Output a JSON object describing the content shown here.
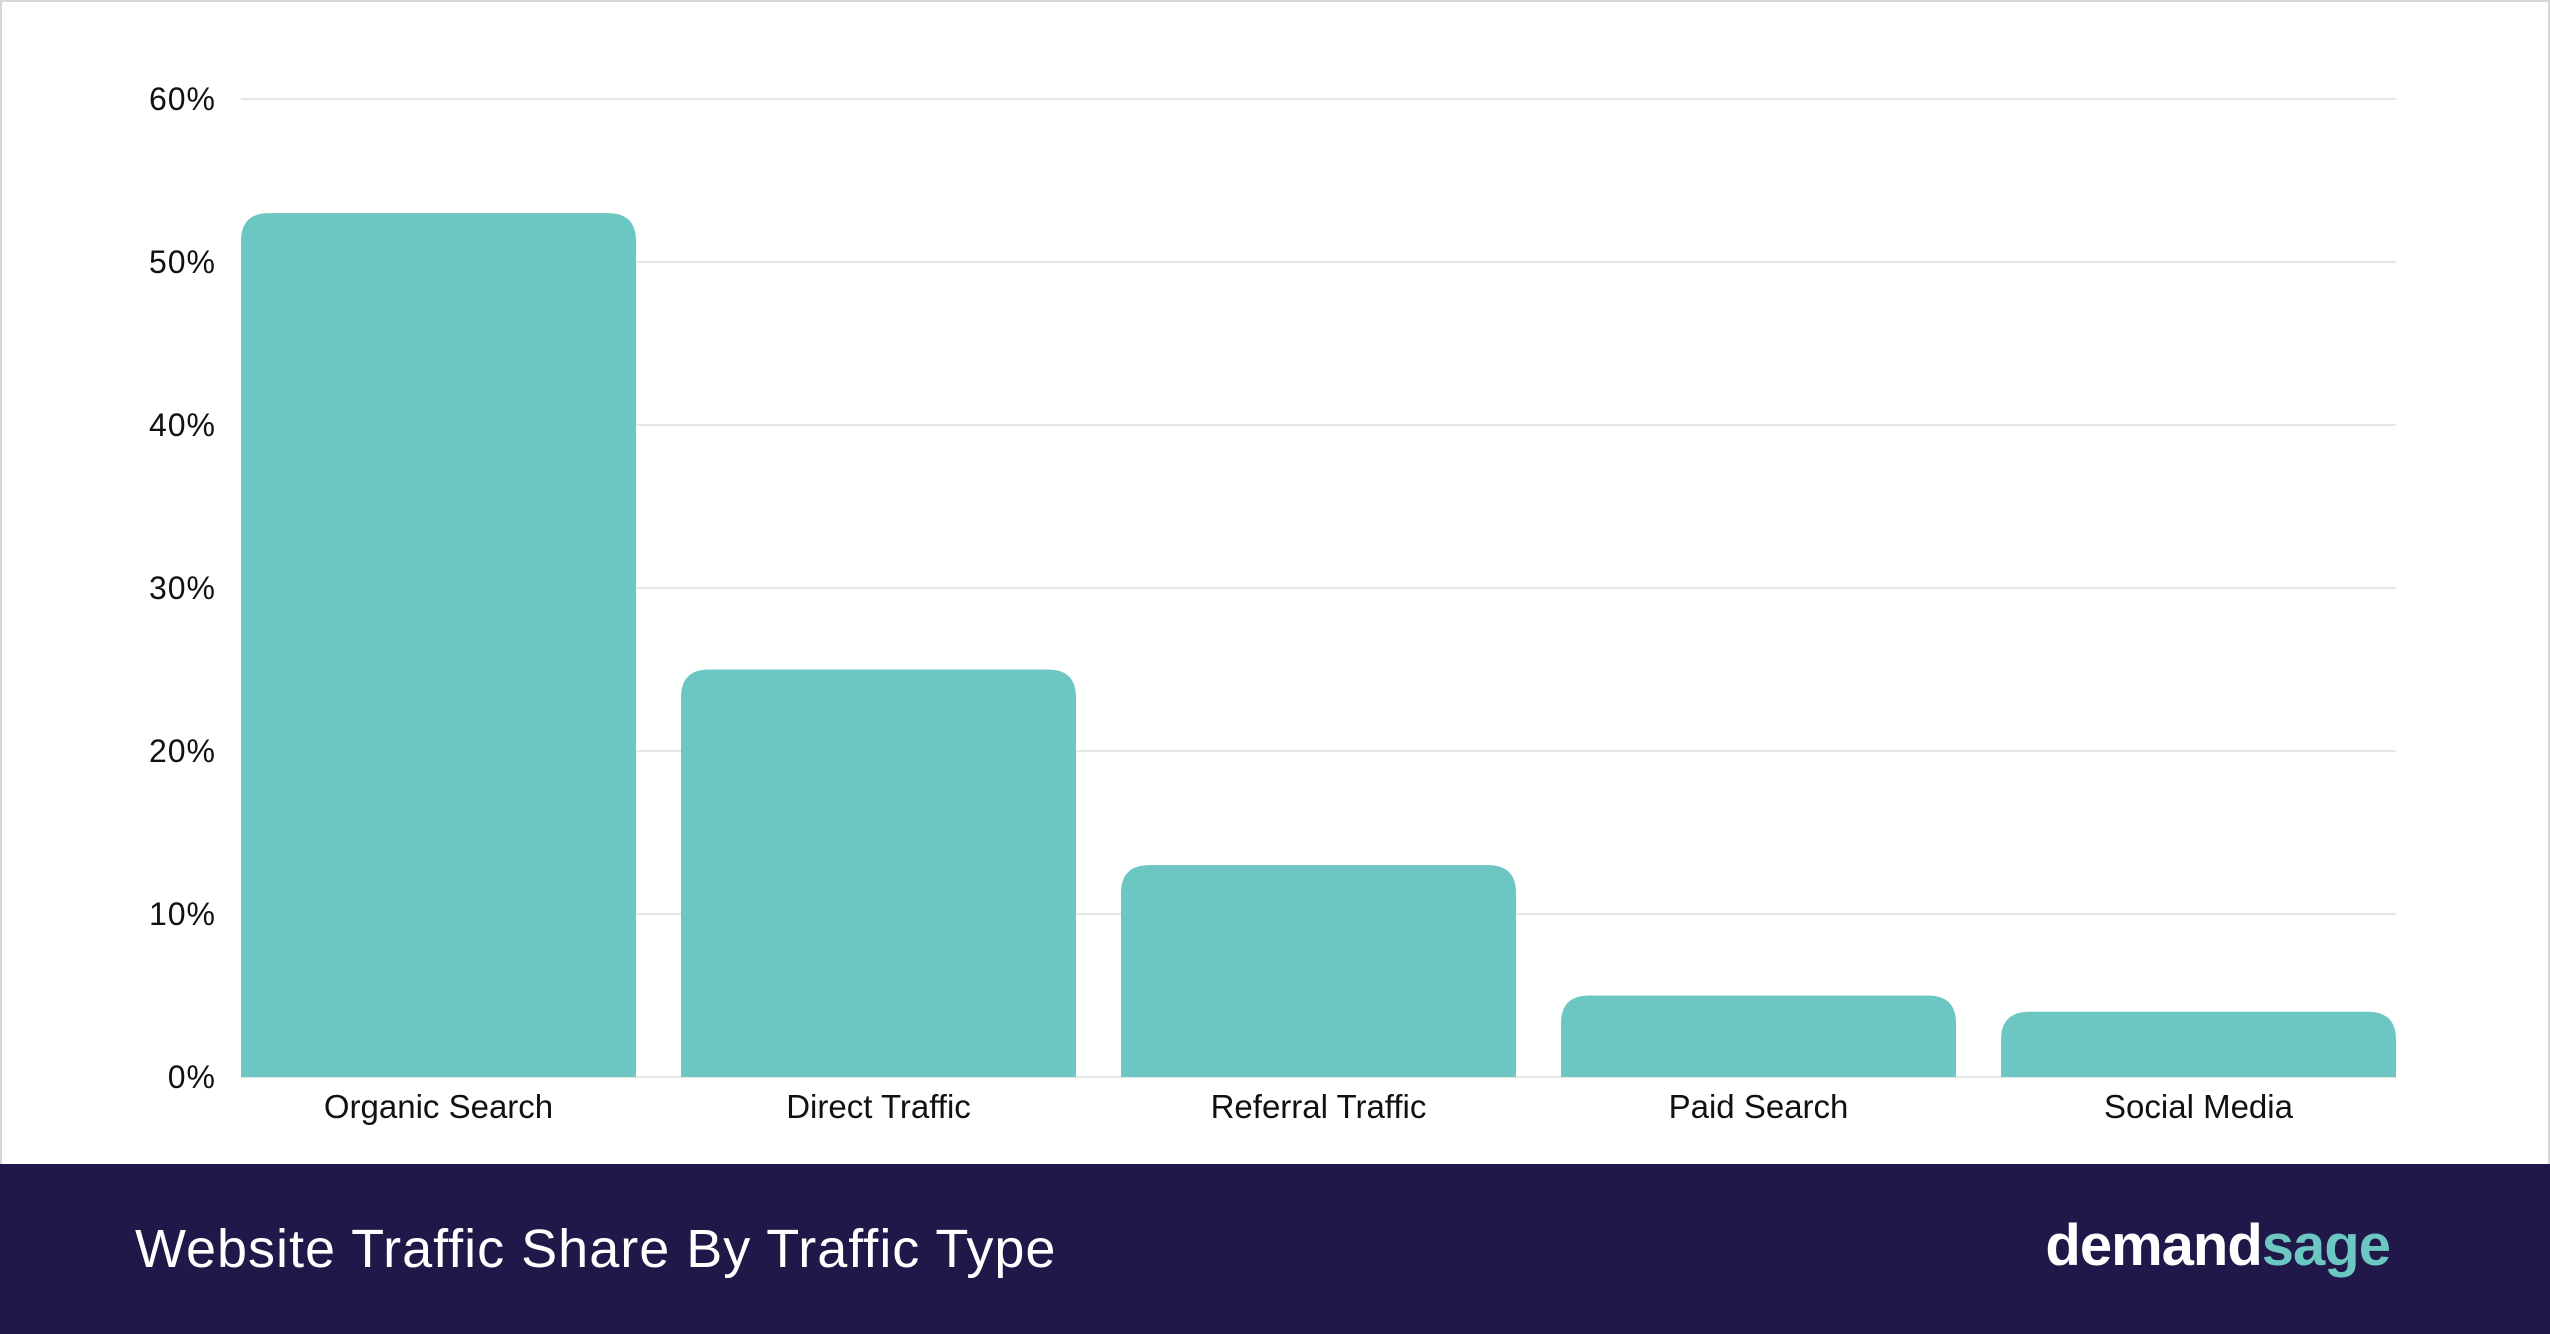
{
  "chart_data": {
    "type": "bar",
    "title": "Website Traffic Share By Traffic Type",
    "categories": [
      "Organic Search",
      "Direct Traffic",
      "Referral Traffic",
      "Paid Search",
      "Social Media"
    ],
    "values": [
      53,
      25,
      13,
      5,
      4
    ],
    "unit": "%",
    "ylim": [
      0,
      60
    ],
    "yticks": [
      "0%",
      "10%",
      "20%",
      "30%",
      "40%",
      "50%",
      "60%"
    ],
    "grid": true,
    "bar_color": "#6cc6c2"
  },
  "footer": {
    "title": "Website Traffic Share By Traffic Type",
    "logo_part1": "demand",
    "logo_part2": "sage",
    "background": "#1f1848"
  }
}
